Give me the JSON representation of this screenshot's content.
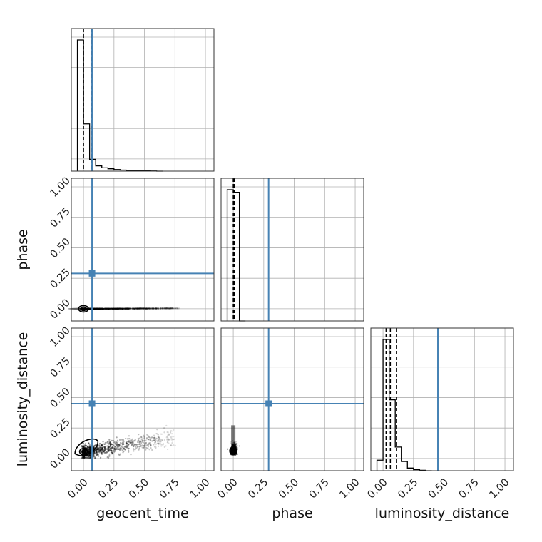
{
  "chart_data": {
    "type": "corner",
    "parameters": [
      "geocent_time",
      "phase",
      "luminosity_distance"
    ],
    "axis_labels": {
      "geocent_time": "geocent_time",
      "phase": "phase",
      "luminosity_distance": "luminosity_distance"
    },
    "range": [
      -0.1,
      1.07
    ],
    "ticks": [
      0.0,
      0.25,
      0.5,
      0.75,
      1.0
    ],
    "tick_labels": [
      "0.00",
      "0.25",
      "0.50",
      "0.75",
      "1.00"
    ],
    "grid": true,
    "truths": {
      "geocent_time": 0.07,
      "phase": 0.29,
      "luminosity_distance": 0.45
    },
    "truth_color": "#4682b4",
    "quantiles": {
      "geocent_time": [
        0.0,
        0.068,
        0.07
      ],
      "phase": [
        0.0,
        0.005,
        0.01
      ],
      "luminosity_distance": [
        0.025,
        0.06,
        0.11
      ]
    },
    "histograms": {
      "geocent_time": {
        "bin_edges": [
          -0.05,
          0.0,
          0.05,
          0.1,
          0.15,
          0.2,
          0.25,
          0.3,
          0.35,
          0.4,
          0.45,
          0.5,
          0.55,
          0.6,
          0.65
        ],
        "counts": [
          1.0,
          0.36,
          0.09,
          0.04,
          0.025,
          0.018,
          0.012,
          0.008,
          0.006,
          0.004,
          0.003,
          0.002,
          0.001,
          0.0
        ]
      },
      "phase": {
        "bin_edges": [
          -0.05,
          0.0,
          0.05,
          0.1
        ],
        "counts": [
          1.0,
          0.98,
          0.0
        ]
      },
      "luminosity_distance": {
        "bin_edges": [
          -0.05,
          0.0,
          0.05,
          0.1,
          0.15,
          0.2,
          0.25,
          0.3,
          0.35,
          0.4
        ],
        "counts": [
          0.08,
          1.0,
          0.54,
          0.18,
          0.07,
          0.02,
          0.008,
          0.003,
          0.0
        ]
      }
    },
    "panels_2d": [
      {
        "x": "geocent_time",
        "y": "phase",
        "core": [
          0.0,
          0.0
        ],
        "scatter_x_range": [
          -0.02,
          0.78
        ],
        "scatter_y_range": [
          -0.005,
          0.005
        ]
      },
      {
        "x": "geocent_time",
        "y": "luminosity_distance",
        "core": [
          0.0,
          0.05
        ],
        "scatter_x_range": [
          -0.02,
          0.75
        ],
        "scatter_y_range": [
          0.0,
          0.35
        ]
      },
      {
        "x": "phase",
        "y": "luminosity_distance",
        "core": [
          0.0,
          0.05
        ],
        "scatter_x_range": [
          -0.01,
          0.01
        ],
        "scatter_y_range": [
          0.03,
          0.2
        ]
      }
    ]
  }
}
